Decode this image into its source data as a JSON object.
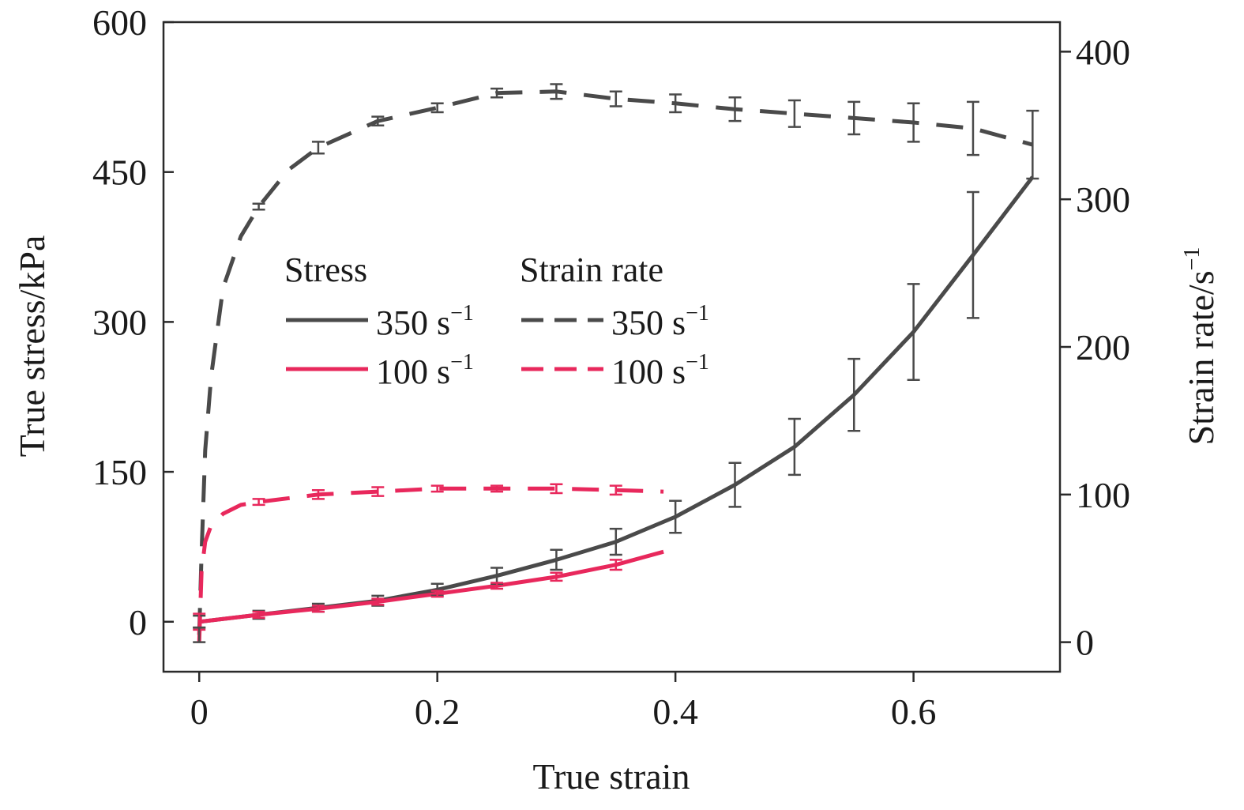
{
  "chart_data": {
    "type": "line",
    "xlabel": "True strain",
    "ylabel": "True stress/kPa",
    "y2label": "Strain rate/s",
    "y2label_sup": "−1",
    "xlim": [
      -0.03,
      0.723
    ],
    "ylim": [
      -50,
      600
    ],
    "y2lim": [
      -20,
      420
    ],
    "xticks": [
      0,
      0.2,
      0.4,
      0.6
    ],
    "xtick_labels": [
      "0",
      "0.2",
      "0.4",
      "0.6"
    ],
    "yticks": [
      0,
      150,
      300,
      450,
      600
    ],
    "ytick_labels": [
      "0",
      "150",
      "300",
      "450",
      "600"
    ],
    "y2ticks": [
      0,
      100,
      200,
      300,
      400
    ],
    "y2tick_labels": [
      "0",
      "100",
      "200",
      "300",
      "400"
    ],
    "grid": false,
    "legend": {
      "placement": "center-left",
      "headers": [
        "Stress",
        "Strain rate"
      ],
      "entries": [
        {
          "label": "350 s",
          "sup": "−1",
          "group": "Stress",
          "color": "#4a4a4a",
          "dash": "solid"
        },
        {
          "label": "350 s",
          "sup": "−1",
          "group": "Strain rate",
          "color": "#4a4a4a",
          "dash": "dashed"
        },
        {
          "label": "100 s",
          "sup": "−1",
          "group": "Stress",
          "color": "#e8285c",
          "dash": "solid"
        },
        {
          "label": "100 s",
          "sup": "−1",
          "group": "Strain rate",
          "color": "#e8285c",
          "dash": "dashed"
        }
      ]
    },
    "series": [
      {
        "name": "Stress 350 s−1",
        "axis": "left",
        "color": "#4a4a4a",
        "dash": "solid",
        "x": [
          0,
          0.05,
          0.1,
          0.15,
          0.2,
          0.25,
          0.3,
          0.35,
          0.4,
          0.45,
          0.5,
          0.55,
          0.6,
          0.65,
          0.7
        ],
        "y": [
          0,
          7,
          14,
          21,
          32,
          46,
          62,
          80,
          105,
          137,
          175,
          227,
          290,
          367,
          445
        ],
        "err": [
          6,
          4,
          4,
          5,
          6,
          8,
          10,
          13,
          16,
          22,
          28,
          36,
          48,
          63,
          0
        ]
      },
      {
        "name": "Stress 100 s−1",
        "axis": "left",
        "color": "#e8285c",
        "dash": "solid",
        "x": [
          0,
          0.05,
          0.1,
          0.15,
          0.2,
          0.25,
          0.3,
          0.35,
          0.39
        ],
        "y": [
          0,
          7,
          13,
          20,
          28,
          36,
          45,
          57,
          70
        ],
        "err": [
          8,
          3,
          3,
          3,
          3,
          3,
          4,
          5,
          0
        ]
      },
      {
        "name": "Strain rate 350 s−1",
        "axis": "right",
        "color": "#4a4a4a",
        "dash": "dashed",
        "x": [
          0,
          0.002,
          0.005,
          0.01,
          0.02,
          0.035,
          0.05,
          0.075,
          0.1,
          0.15,
          0.2,
          0.25,
          0.3,
          0.35,
          0.4,
          0.45,
          0.5,
          0.55,
          0.6,
          0.65,
          0.7
        ],
        "y": [
          5,
          60,
          130,
          180,
          240,
          275,
          295,
          320,
          335,
          353,
          362,
          372,
          373,
          368,
          365,
          361,
          358,
          355,
          352,
          348,
          337
        ],
        "err": [
          5,
          0,
          0,
          0,
          0,
          0,
          2,
          0,
          4,
          3,
          3,
          3,
          5,
          5,
          6,
          8,
          9,
          11,
          13,
          18,
          23
        ]
      },
      {
        "name": "Strain rate 100 s−1",
        "axis": "right",
        "color": "#e8285c",
        "dash": "dashed",
        "x": [
          0,
          0.002,
          0.005,
          0.01,
          0.02,
          0.035,
          0.05,
          0.1,
          0.15,
          0.2,
          0.25,
          0.3,
          0.35,
          0.39
        ],
        "y": [
          0,
          48,
          68,
          79,
          87,
          93,
          95,
          100,
          102,
          104,
          104,
          104,
          103,
          102
        ],
        "err": [
          0,
          0,
          0,
          0,
          0,
          0,
          2,
          3,
          3,
          2,
          2,
          3,
          3,
          0
        ]
      }
    ]
  }
}
